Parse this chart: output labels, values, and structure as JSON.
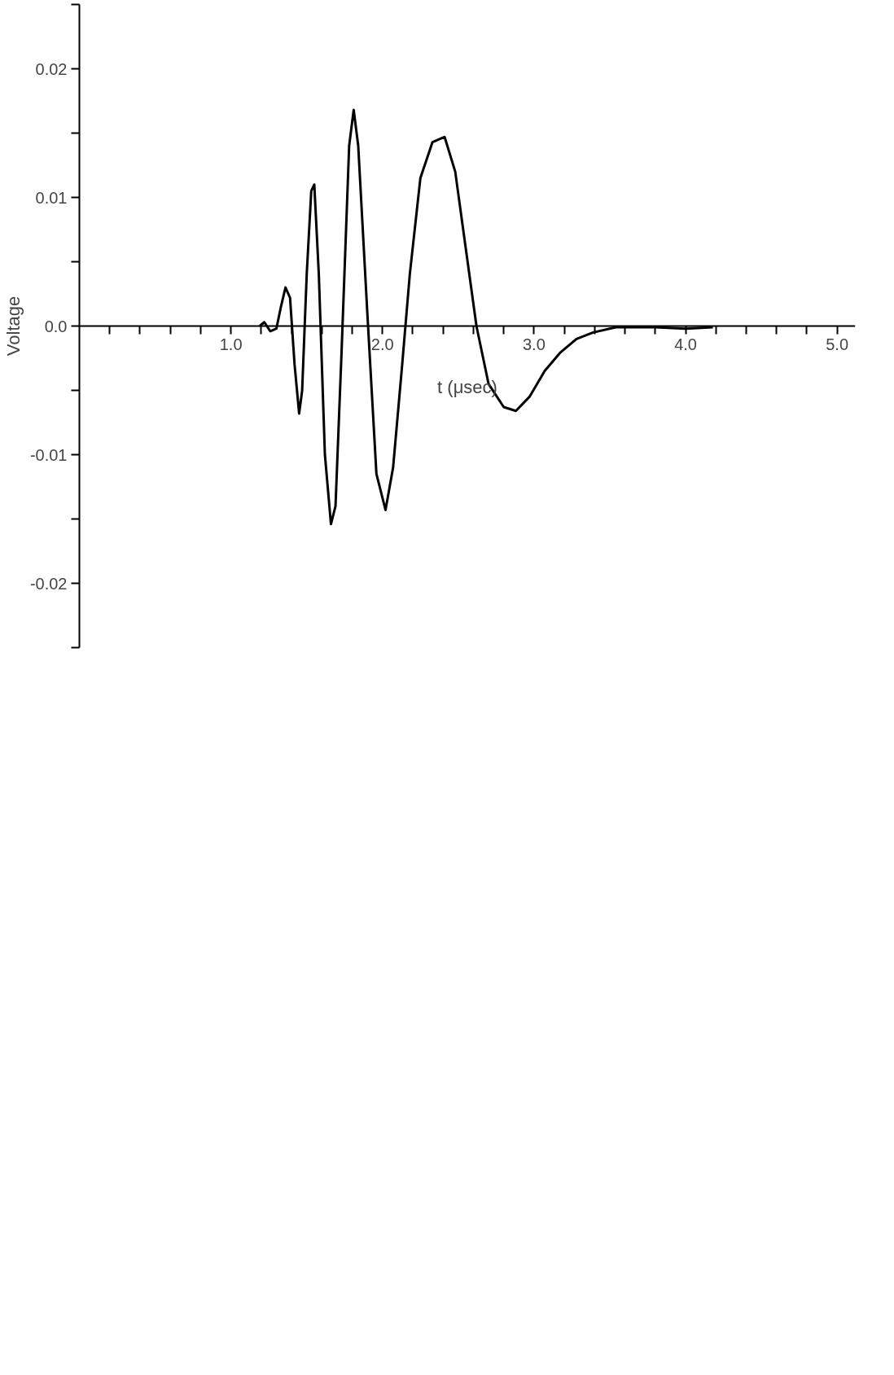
{
  "chart_data": {
    "type": "line",
    "xlabel": "t (μsec)",
    "ylabel": "Voltage",
    "xlim": [
      0,
      5.12
    ],
    "ylim": [
      -0.025,
      0.025
    ],
    "xticks": [
      {
        "value": 0.2,
        "label": null
      },
      {
        "value": 0.4,
        "label": null
      },
      {
        "value": 0.6,
        "label": null
      },
      {
        "value": 0.8,
        "label": null
      },
      {
        "value": 1.0,
        "label": "1.0"
      },
      {
        "value": 1.2,
        "label": null
      },
      {
        "value": 1.4,
        "label": null
      },
      {
        "value": 1.6,
        "label": null
      },
      {
        "value": 1.8,
        "label": null
      },
      {
        "value": 2.0,
        "label": "2.0"
      },
      {
        "value": 2.2,
        "label": null
      },
      {
        "value": 2.4,
        "label": null
      },
      {
        "value": 2.6,
        "label": null
      },
      {
        "value": 2.8,
        "label": null
      },
      {
        "value": 3.0,
        "label": "3.0"
      },
      {
        "value": 3.2,
        "label": null
      },
      {
        "value": 3.4,
        "label": null
      },
      {
        "value": 3.6,
        "label": null
      },
      {
        "value": 3.8,
        "label": null
      },
      {
        "value": 4.0,
        "label": "4.0"
      },
      {
        "value": 4.2,
        "label": null
      },
      {
        "value": 4.4,
        "label": null
      },
      {
        "value": 4.6,
        "label": null
      },
      {
        "value": 4.8,
        "label": null
      },
      {
        "value": 5.0,
        "label": "5.0"
      }
    ],
    "yticks": [
      {
        "value": -0.025,
        "label": null
      },
      {
        "value": -0.02,
        "label": "-0.02"
      },
      {
        "value": -0.015,
        "label": null
      },
      {
        "value": -0.01,
        "label": "-0.01"
      },
      {
        "value": -0.005,
        "label": null
      },
      {
        "value": 0,
        "label": "0.0"
      },
      {
        "value": 0.005,
        "label": null
      },
      {
        "value": 0.01,
        "label": "0.01"
      },
      {
        "value": 0.015,
        "label": null
      },
      {
        "value": 0.02,
        "label": "0.02"
      },
      {
        "value": 0.025,
        "label": null
      }
    ],
    "grid": false,
    "marker": "none",
    "line_style": "solid",
    "series": [
      {
        "color": "#000000",
        "x": [
          1.19,
          1.22,
          1.26,
          1.3,
          1.33,
          1.36,
          1.39,
          1.42,
          1.45,
          1.47,
          1.5,
          1.53,
          1.55,
          1.58,
          1.62,
          1.66,
          1.69,
          1.73,
          1.78,
          1.81,
          1.84,
          1.9,
          1.96,
          2.02,
          2.07,
          2.13,
          2.18,
          2.25,
          2.33,
          2.41,
          2.48,
          2.55,
          2.62,
          2.7,
          2.8,
          2.88,
          2.97,
          3.07,
          3.17,
          3.28,
          3.39,
          3.54,
          3.8,
          4.0,
          4.18
        ],
        "values": [
          0,
          0.0003,
          -0.0004,
          -0.0002,
          0.0015,
          0.003,
          0.0022,
          -0.003,
          -0.0068,
          -0.005,
          0.004,
          0.0105,
          0.011,
          0.004,
          -0.01,
          -0.0154,
          -0.014,
          -0.002,
          0.014,
          0.0168,
          0.014,
          0.001,
          -0.0115,
          -0.0143,
          -0.011,
          -0.003,
          0.004,
          0.0115,
          0.0143,
          0.0147,
          0.012,
          0.006,
          0.0,
          -0.0045,
          -0.0063,
          -0.0066,
          -0.0055,
          -0.0035,
          -0.0021,
          -0.001,
          -0.0005,
          -0.0001,
          -0.0001,
          -0.0002,
          -0.0001
        ]
      }
    ]
  }
}
